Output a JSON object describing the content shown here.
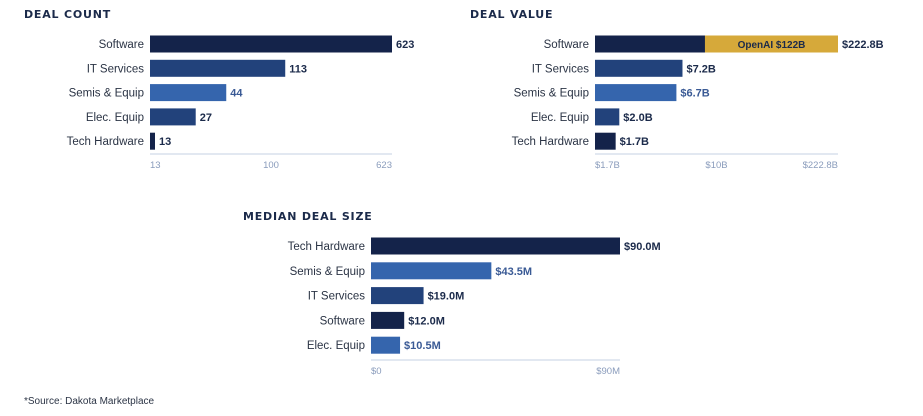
{
  "colors": {
    "c1": "#14234a",
    "c2": "#22427b",
    "c3": "#3565ad",
    "gold": "#d6a93a",
    "axis": "#c4d0e3",
    "tick": "#8a9cbc"
  },
  "source": "*Source: Dakota Marketplace",
  "chart_data": [
    {
      "type": "bar",
      "orientation": "horizontal",
      "title": "DEAL COUNT",
      "categories": [
        "Software",
        "IT Services",
        "Semis & Equip",
        "Elec. Equip",
        "Tech Hardware"
      ],
      "values": [
        623,
        113,
        44,
        27,
        13
      ],
      "value_labels": [
        "623",
        "113",
        "44",
        "27",
        "13"
      ],
      "colors": [
        "c1",
        "c2",
        "c3",
        "c2",
        "c1"
      ],
      "axis": {
        "scale": "log",
        "xlim": [
          13,
          623
        ],
        "ticks": [
          13,
          100,
          623
        ],
        "tick_labels": [
          "13",
          "100",
          "623"
        ]
      }
    },
    {
      "type": "bar",
      "orientation": "horizontal",
      "title": "DEAL VALUE",
      "categories": [
        "Software",
        "IT Services",
        "Semis & Equip",
        "Elec. Equip",
        "Tech Hardware"
      ],
      "values": [
        222.8,
        7.2,
        6.7,
        2.0,
        1.7
      ],
      "value_labels": [
        "$222.8B",
        "$7.2B",
        "$6.7B",
        "$2.0B",
        "$1.7B"
      ],
      "colors": [
        "c1",
        "c2",
        "c3",
        "c2",
        "c1"
      ],
      "annotation": {
        "category": "Software",
        "segment_value": 122,
        "label": "OpenAI $122B"
      },
      "axis": {
        "scale": "piecewise",
        "xlim": [
          0,
          222.8
        ],
        "ticks": [
          1.7,
          10,
          222.8
        ],
        "tick_labels": [
          "$1.7B",
          "$10B",
          "$222.8B"
        ]
      }
    },
    {
      "type": "bar",
      "orientation": "horizontal",
      "title": "MEDIAN DEAL SIZE",
      "categories": [
        "Tech Hardware",
        "Semis & Equip",
        "IT Services",
        "Software",
        "Elec. Equip"
      ],
      "values": [
        90.0,
        43.5,
        19.0,
        12.0,
        10.5
      ],
      "value_labels": [
        "$90.0M",
        "$43.5M",
        "$19.0M",
        "$12.0M",
        "$10.5M"
      ],
      "colors": [
        "c1",
        "c3",
        "c2",
        "c1",
        "c3"
      ],
      "axis": {
        "scale": "linear",
        "xlim": [
          0,
          90
        ],
        "ticks": [
          0,
          90
        ],
        "tick_labels": [
          "$0",
          "$90M"
        ]
      }
    }
  ]
}
